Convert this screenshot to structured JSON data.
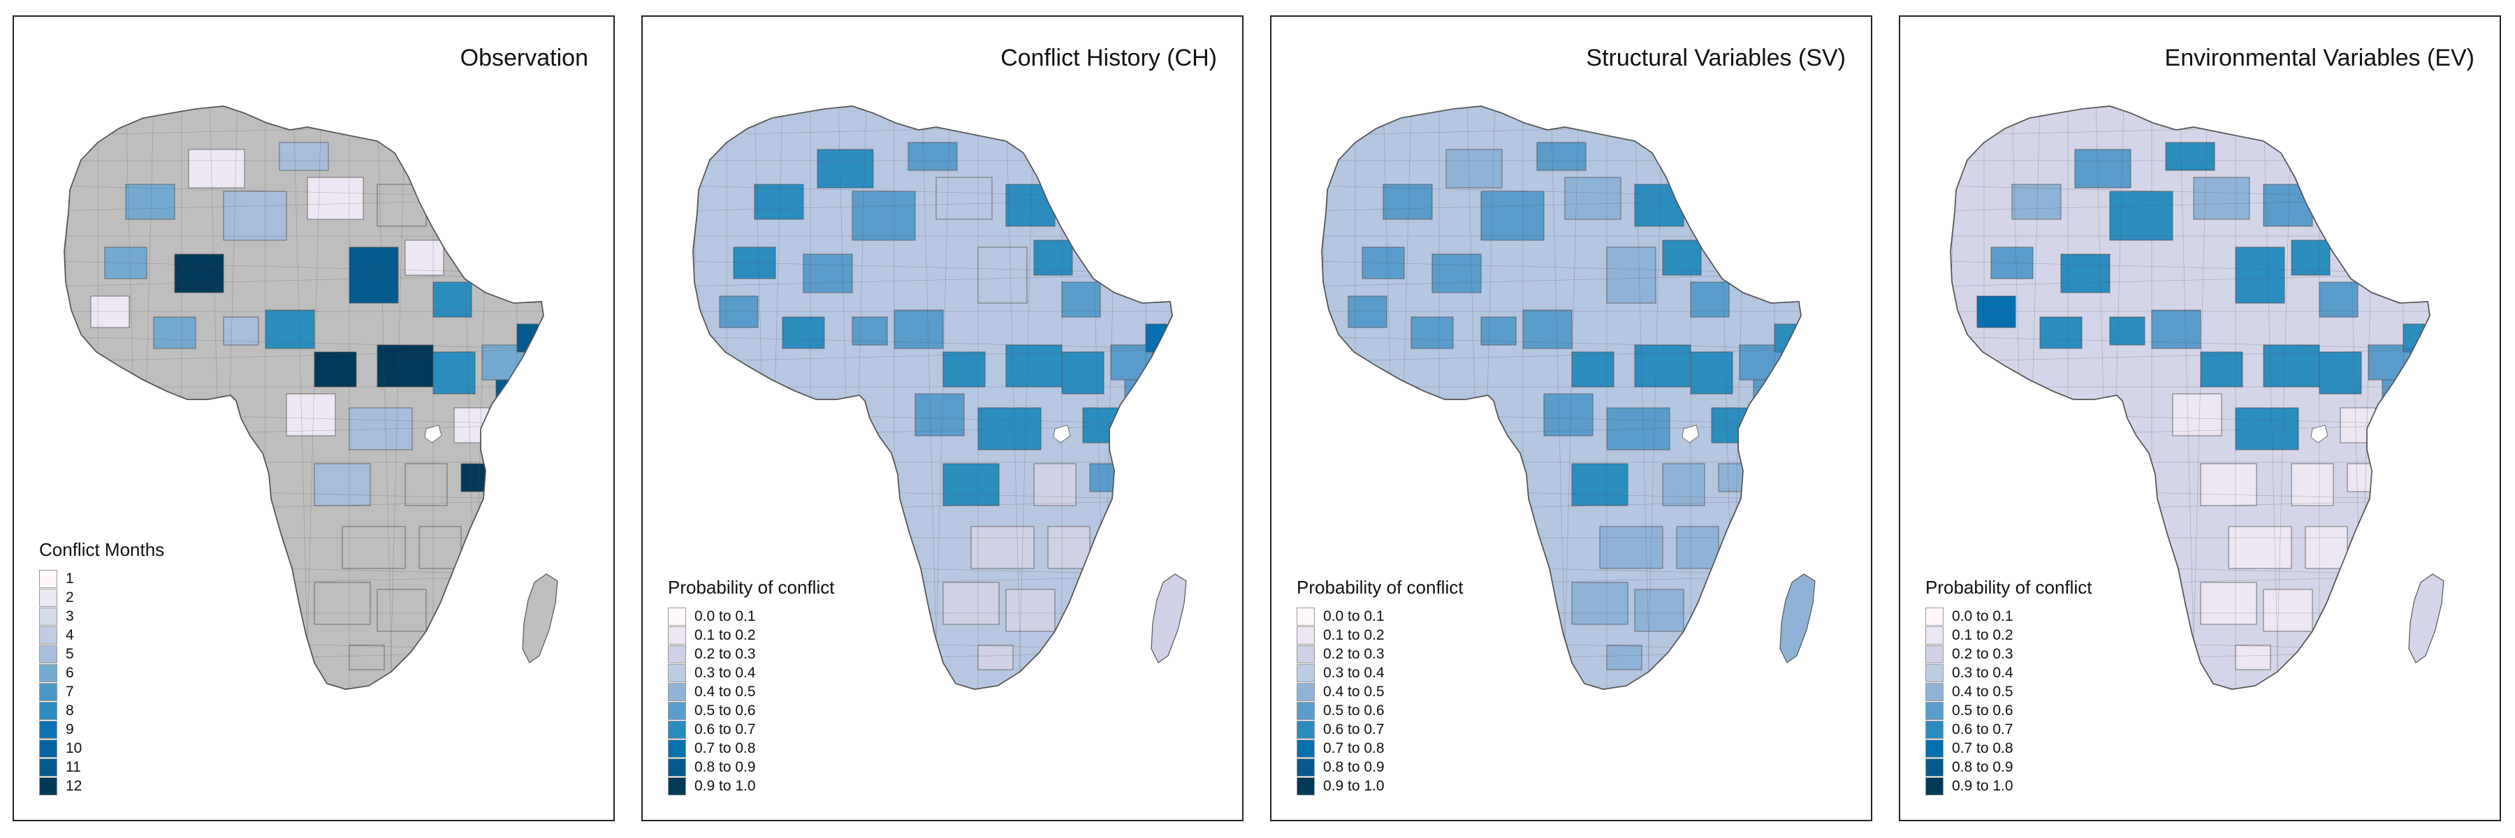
{
  "panels": [
    {
      "title": "Observation",
      "legend": {
        "title": "Conflict Months",
        "items": [
          {
            "label": "1",
            "color": "#fff7fb"
          },
          {
            "label": "2",
            "color": "#ece7f2"
          },
          {
            "label": "3",
            "color": "#d7dbea"
          },
          {
            "label": "4",
            "color": "#c1cbe1"
          },
          {
            "label": "5",
            "color": "#a6bddb"
          },
          {
            "label": "6",
            "color": "#74a9cf"
          },
          {
            "label": "7",
            "color": "#4a98c6"
          },
          {
            "label": "8",
            "color": "#2b8cbe"
          },
          {
            "label": "9",
            "color": "#0f73b2"
          },
          {
            "label": "10",
            "color": "#0564a0"
          },
          {
            "label": "11",
            "color": "#045a8d"
          },
          {
            "label": "12",
            "color": "#023858"
          }
        ]
      }
    },
    {
      "title": "Conflict History (CH)",
      "legend": {
        "title": "Probability of conflict",
        "items": [
          {
            "label": "0.0 to 0.1",
            "color": "#fff7fb"
          },
          {
            "label": "0.1 to 0.2",
            "color": "#ece7f2"
          },
          {
            "label": "0.2 to 0.3",
            "color": "#d0d1e6"
          },
          {
            "label": "0.3 to 0.4",
            "color": "#bccce3"
          },
          {
            "label": "0.4 to 0.5",
            "color": "#8fb3d6"
          },
          {
            "label": "0.5 to 0.6",
            "color": "#5a9ccb"
          },
          {
            "label": "0.6 to 0.7",
            "color": "#2b8cbe"
          },
          {
            "label": "0.7 to 0.8",
            "color": "#0570b0"
          },
          {
            "label": "0.8 to 0.9",
            "color": "#045a8d"
          },
          {
            "label": "0.9 to 1.0",
            "color": "#023858"
          }
        ]
      }
    },
    {
      "title": "Structural Variables (SV)",
      "legend": {
        "title": "Probability of conflict",
        "items": [
          {
            "label": "0.0 to 0.1",
            "color": "#fff7fb"
          },
          {
            "label": "0.1 to 0.2",
            "color": "#ece7f2"
          },
          {
            "label": "0.2 to 0.3",
            "color": "#d0d1e6"
          },
          {
            "label": "0.3 to 0.4",
            "color": "#bccce3"
          },
          {
            "label": "0.4 to 0.5",
            "color": "#8fb3d6"
          },
          {
            "label": "0.5 to 0.6",
            "color": "#5a9ccb"
          },
          {
            "label": "0.6 to 0.7",
            "color": "#2b8cbe"
          },
          {
            "label": "0.7 to 0.8",
            "color": "#0570b0"
          },
          {
            "label": "0.8 to 0.9",
            "color": "#045a8d"
          },
          {
            "label": "0.9 to 1.0",
            "color": "#023858"
          }
        ]
      }
    },
    {
      "title": "Environmental Variables (EV)",
      "legend": {
        "title": "Probability of conflict",
        "items": [
          {
            "label": "0.0 to 0.1",
            "color": "#fff7fb"
          },
          {
            "label": "0.1 to 0.2",
            "color": "#ece7f2"
          },
          {
            "label": "0.2 to 0.3",
            "color": "#d0d1e6"
          },
          {
            "label": "0.3 to 0.4",
            "color": "#bccce3"
          },
          {
            "label": "0.4 to 0.5",
            "color": "#8fb3d6"
          },
          {
            "label": "0.5 to 0.6",
            "color": "#5a9ccb"
          },
          {
            "label": "0.6 to 0.7",
            "color": "#2b8cbe"
          },
          {
            "label": "0.7 to 0.8",
            "color": "#0570b0"
          },
          {
            "label": "0.8 to 0.9",
            "color": "#045a8d"
          },
          {
            "label": "0.9 to 1.0",
            "color": "#023858"
          }
        ]
      }
    }
  ],
  "map_colors": {
    "no_data": "#bebebe",
    "boundary": "#555555",
    "obs_accents": [
      "#023858",
      "#045a8d",
      "#2b8cbe",
      "#74a9cf",
      "#a6bddb",
      "#ece7f2"
    ],
    "ch_base": "#b7c7e1",
    "ch_accents": [
      "#5a9ccb",
      "#2b8cbe",
      "#0570b0",
      "#d0d1e6"
    ],
    "sv_base": "#b4c6e0",
    "sv_accents": [
      "#5a9ccb",
      "#2b8cbe",
      "#8fb3d6"
    ],
    "ev_base": "#d4d5e8",
    "ev_accents": [
      "#5a9ccb",
      "#2b8cbe",
      "#0570b0",
      "#8fb3d6",
      "#ece7f2"
    ]
  }
}
